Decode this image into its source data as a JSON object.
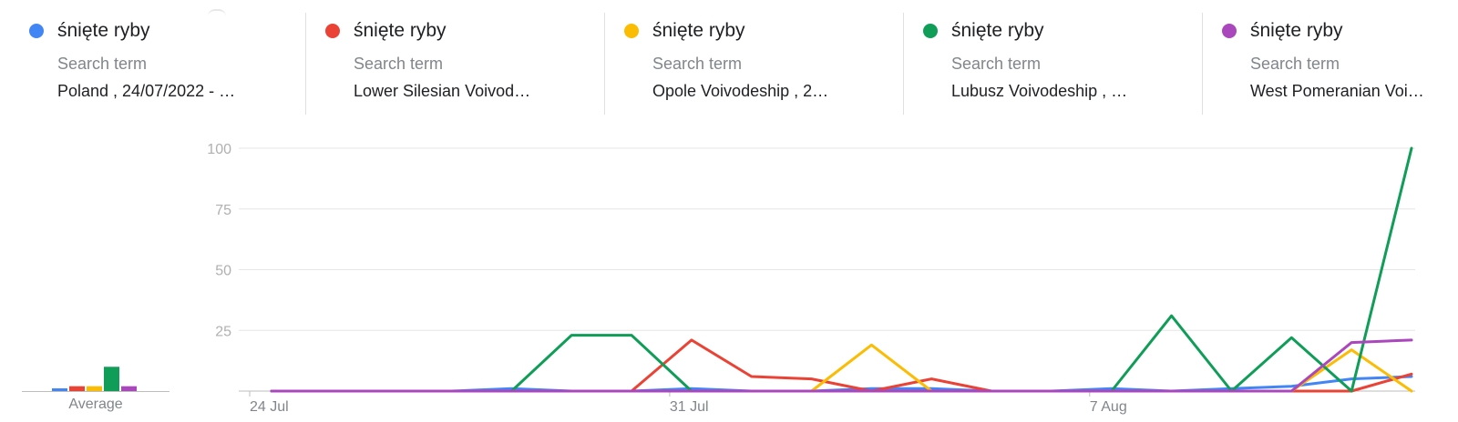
{
  "legend": {
    "terms": [
      {
        "name": "śnięte ryby",
        "kind": "Search term",
        "scope": "Poland , 24/07/2022 - …",
        "color": "#4285f4"
      },
      {
        "name": "śnięte ryby",
        "kind": "Search term",
        "scope": "Lower Silesian Voivod…",
        "color": "#ea4335"
      },
      {
        "name": "śnięte ryby",
        "kind": "Search term",
        "scope": "Opole Voivodeship , 2…",
        "color": "#fbbc04"
      },
      {
        "name": "śnięte ryby",
        "kind": "Search term",
        "scope": "Lubusz Voivodeship , …",
        "color": "#0f9d58"
      },
      {
        "name": "śnięte ryby",
        "kind": "Search term",
        "scope": "West Pomeranian Voi…",
        "color": "#ab47bc"
      }
    ]
  },
  "average": {
    "label": "Average",
    "values": [
      1,
      2,
      2,
      10,
      2
    ]
  },
  "chart_data": {
    "type": "line",
    "x": [
      "24 Jul",
      "25 Jul",
      "26 Jul",
      "27 Jul",
      "28 Jul",
      "29 Jul",
      "30 Jul",
      "31 Jul",
      "1 Aug",
      "2 Aug",
      "3 Aug",
      "4 Aug",
      "5 Aug",
      "6 Aug",
      "7 Aug",
      "8 Aug",
      "9 Aug",
      "10 Aug",
      "11 Aug",
      "12 Aug"
    ],
    "x_tick_labels": [
      "24 Jul",
      "31 Jul",
      "7 Aug"
    ],
    "y_ticks": [
      25,
      50,
      75,
      100
    ],
    "ylim": [
      0,
      100
    ],
    "grid": true,
    "series": [
      {
        "name": "śnięte ryby",
        "color": "#4285f4",
        "values": [
          0,
          0,
          0,
          0,
          1,
          0,
          0,
          1,
          0,
          0,
          1,
          1,
          0,
          0,
          1,
          0,
          1,
          2,
          5,
          6
        ]
      },
      {
        "name": "śnięte ryby",
        "color": "#ea4335",
        "values": [
          0,
          0,
          0,
          0,
          0,
          0,
          0,
          21,
          6,
          5,
          0,
          5,
          0,
          0,
          0,
          0,
          0,
          0,
          0,
          7
        ]
      },
      {
        "name": "śnięte ryby",
        "color": "#fbbc04",
        "values": [
          0,
          0,
          0,
          0,
          0,
          0,
          0,
          0,
          0,
          0,
          19,
          0,
          0,
          0,
          0,
          0,
          0,
          0,
          17,
          0
        ]
      },
      {
        "name": "śnięte ryby",
        "color": "#0f9d58",
        "values": [
          0,
          0,
          0,
          0,
          0,
          23,
          23,
          0,
          0,
          0,
          0,
          0,
          0,
          0,
          0,
          31,
          0,
          22,
          0,
          100
        ]
      },
      {
        "name": "śnięte ryby",
        "color": "#ab47bc",
        "values": [
          0,
          0,
          0,
          0,
          0,
          0,
          0,
          0,
          0,
          0,
          0,
          0,
          0,
          0,
          0,
          0,
          0,
          0,
          20,
          21
        ]
      }
    ]
  }
}
